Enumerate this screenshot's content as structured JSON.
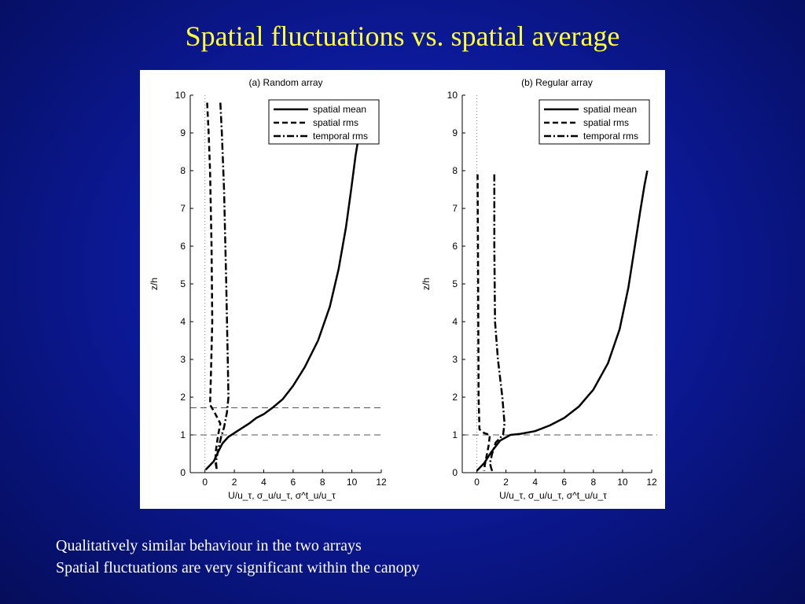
{
  "slide": {
    "title": "Spatial fluctuations vs. spatial average",
    "bullets": [
      "Qualitatively similar behaviour in the two arrays",
      "Spatial fluctuations are very significant within the canopy"
    ]
  },
  "colors": {
    "background": "#0c1a9a",
    "title": "#ffff33",
    "caption": "#ffffff",
    "figure_background": "#ffffff",
    "lines": "#000000"
  },
  "chart_data": [
    {
      "type": "line",
      "title": "(a) Random array",
      "xlabel": "U/u_τ, σ_u/u_τ, σ^t_u/u_τ",
      "ylabel": "z/h",
      "xlim": [
        -1,
        12
      ],
      "ylim": [
        0,
        10
      ],
      "xticks": [
        0,
        2,
        4,
        6,
        8,
        10,
        12
      ],
      "yticks": [
        0,
        1,
        2,
        3,
        4,
        5,
        6,
        7,
        8,
        9,
        10
      ],
      "grid": false,
      "legend": "top-right",
      "reference_lines": {
        "vertical_dotted_x": 0,
        "horizontal_dashed_y": [
          1,
          1.72
        ]
      },
      "series": [
        {
          "name": "spatial mean",
          "style": "solid",
          "points": [
            [
              0.05,
              0.08
            ],
            [
              0.6,
              0.3
            ],
            [
              0.9,
              0.55
            ],
            [
              1.2,
              0.78
            ],
            [
              1.6,
              0.95
            ],
            [
              2.2,
              1.1
            ],
            [
              3.0,
              1.3
            ],
            [
              3.5,
              1.45
            ],
            [
              4.0,
              1.55
            ],
            [
              4.6,
              1.72
            ],
            [
              5.3,
              1.95
            ],
            [
              6.0,
              2.3
            ],
            [
              6.8,
              2.8
            ],
            [
              7.7,
              3.5
            ],
            [
              8.5,
              4.4
            ],
            [
              9.1,
              5.4
            ],
            [
              9.6,
              6.5
            ],
            [
              9.95,
              7.5
            ],
            [
              10.25,
              8.4
            ],
            [
              10.5,
              9.0
            ]
          ]
        },
        {
          "name": "spatial rms",
          "style": "dashed",
          "points": [
            [
              0.15,
              9.8
            ],
            [
              0.25,
              9.0
            ],
            [
              0.35,
              8.0
            ],
            [
              0.45,
              6.0
            ],
            [
              0.5,
              4.0
            ],
            [
              0.4,
              2.5
            ],
            [
              0.35,
              1.8
            ],
            [
              0.65,
              1.6
            ],
            [
              1.05,
              1.3
            ],
            [
              0.9,
              1.0
            ],
            [
              0.75,
              0.6
            ],
            [
              0.7,
              0.3
            ],
            [
              0.8,
              0.1
            ]
          ]
        },
        {
          "name": "temporal rms",
          "style": "dashdot",
          "points": [
            [
              1.05,
              9.8
            ],
            [
              1.15,
              9.0
            ],
            [
              1.3,
              7.5
            ],
            [
              1.45,
              5.0
            ],
            [
              1.55,
              3.0
            ],
            [
              1.6,
              2.0
            ],
            [
              1.5,
              1.6
            ],
            [
              1.3,
              1.2
            ],
            [
              1.1,
              0.95
            ],
            [
              0.9,
              0.6
            ],
            [
              0.75,
              0.3
            ],
            [
              0.8,
              0.1
            ]
          ]
        }
      ]
    },
    {
      "type": "line",
      "title": "(b) Regular array",
      "xlabel": "U/u_τ, σ_u/u_τ, σ^t_u/u_τ",
      "ylabel": "z/h",
      "xlim": [
        -1,
        12
      ],
      "ylim": [
        0,
        10
      ],
      "xticks": [
        0,
        2,
        4,
        6,
        8,
        10,
        12
      ],
      "yticks": [
        0,
        1,
        2,
        3,
        4,
        5,
        6,
        7,
        8,
        9,
        10
      ],
      "grid": false,
      "legend": "top-right",
      "reference_lines": {
        "vertical_dotted_x": 0,
        "horizontal_dashed_y": [
          1
        ]
      },
      "series": [
        {
          "name": "spatial mean",
          "style": "solid",
          "points": [
            [
              0.0,
              0.05
            ],
            [
              0.5,
              0.25
            ],
            [
              1.0,
              0.55
            ],
            [
              1.6,
              0.85
            ],
            [
              2.3,
              1.0
            ],
            [
              3.0,
              1.03
            ],
            [
              4.0,
              1.1
            ],
            [
              5.0,
              1.25
            ],
            [
              6.0,
              1.45
            ],
            [
              7.0,
              1.75
            ],
            [
              8.0,
              2.2
            ],
            [
              9.0,
              2.9
            ],
            [
              9.8,
              3.8
            ],
            [
              10.4,
              4.9
            ],
            [
              10.8,
              5.9
            ],
            [
              11.2,
              6.9
            ],
            [
              11.5,
              7.6
            ],
            [
              11.7,
              8.0
            ]
          ]
        },
        {
          "name": "spatial rms",
          "style": "dashed",
          "points": [
            [
              0.05,
              7.9
            ],
            [
              0.08,
              6.0
            ],
            [
              0.1,
              4.0
            ],
            [
              0.12,
              2.0
            ],
            [
              0.18,
              1.15
            ],
            [
              0.5,
              1.05
            ],
            [
              0.9,
              1.0
            ],
            [
              0.8,
              0.7
            ],
            [
              0.65,
              0.4
            ],
            [
              0.55,
              0.2
            ],
            [
              0.5,
              0.05
            ]
          ]
        },
        {
          "name": "temporal rms",
          "style": "dashdot",
          "points": [
            [
              1.2,
              7.9
            ],
            [
              1.2,
              6.0
            ],
            [
              1.25,
              4.0
            ],
            [
              1.45,
              3.0
            ],
            [
              1.75,
              2.0
            ],
            [
              1.9,
              1.3
            ],
            [
              1.8,
              1.0
            ],
            [
              1.3,
              0.8
            ],
            [
              1.05,
              0.5
            ],
            [
              0.9,
              0.25
            ],
            [
              1.0,
              0.1
            ],
            [
              1.1,
              0.0
            ]
          ]
        }
      ]
    }
  ]
}
